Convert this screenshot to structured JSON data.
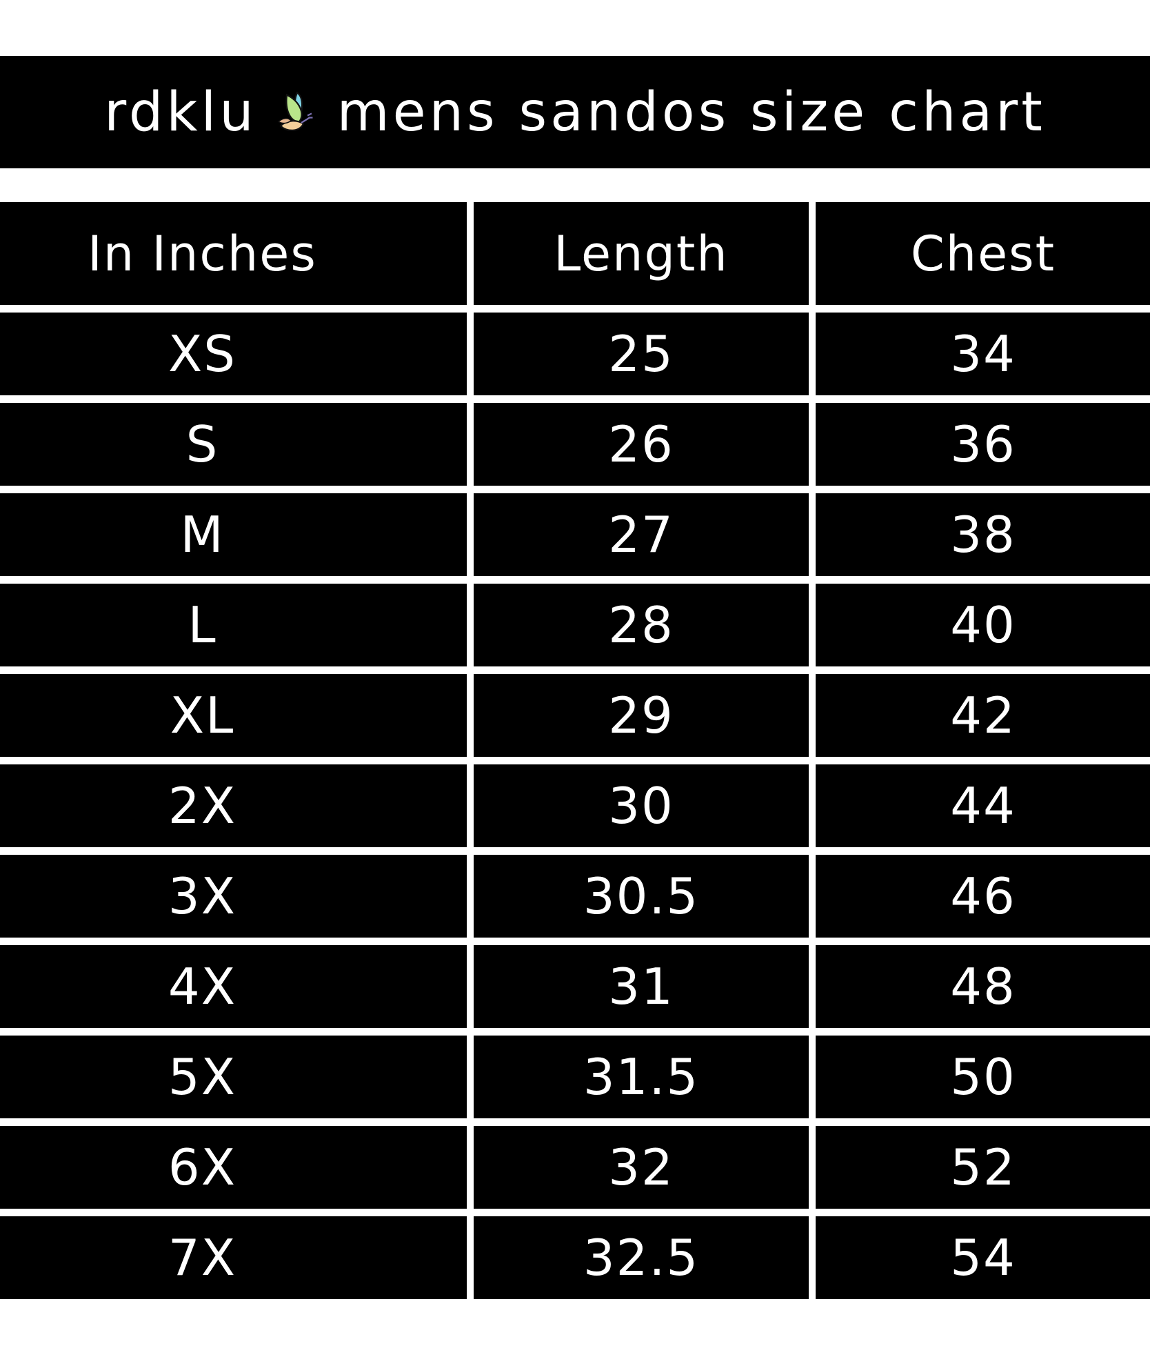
{
  "title": {
    "brand": "rdklu",
    "text": "mens sandos size chart",
    "logo_icon": "butterfly-icon"
  },
  "table": {
    "headers": [
      "In Inches",
      "Length",
      "Chest"
    ],
    "rows": [
      [
        "XS",
        "25",
        "34"
      ],
      [
        "S",
        "26",
        "36"
      ],
      [
        "M",
        "27",
        "38"
      ],
      [
        "L",
        "28",
        "40"
      ],
      [
        "XL",
        "29",
        "42"
      ],
      [
        "2X",
        "30",
        "44"
      ],
      [
        "3X",
        "30.5",
        "46"
      ],
      [
        "4X",
        "31",
        "48"
      ],
      [
        "5X",
        "31.5",
        "50"
      ],
      [
        "6X",
        "32",
        "52"
      ],
      [
        "7X",
        "32.5",
        "54"
      ]
    ]
  },
  "colors": {
    "background": "#000000",
    "text": "#ffffff"
  }
}
